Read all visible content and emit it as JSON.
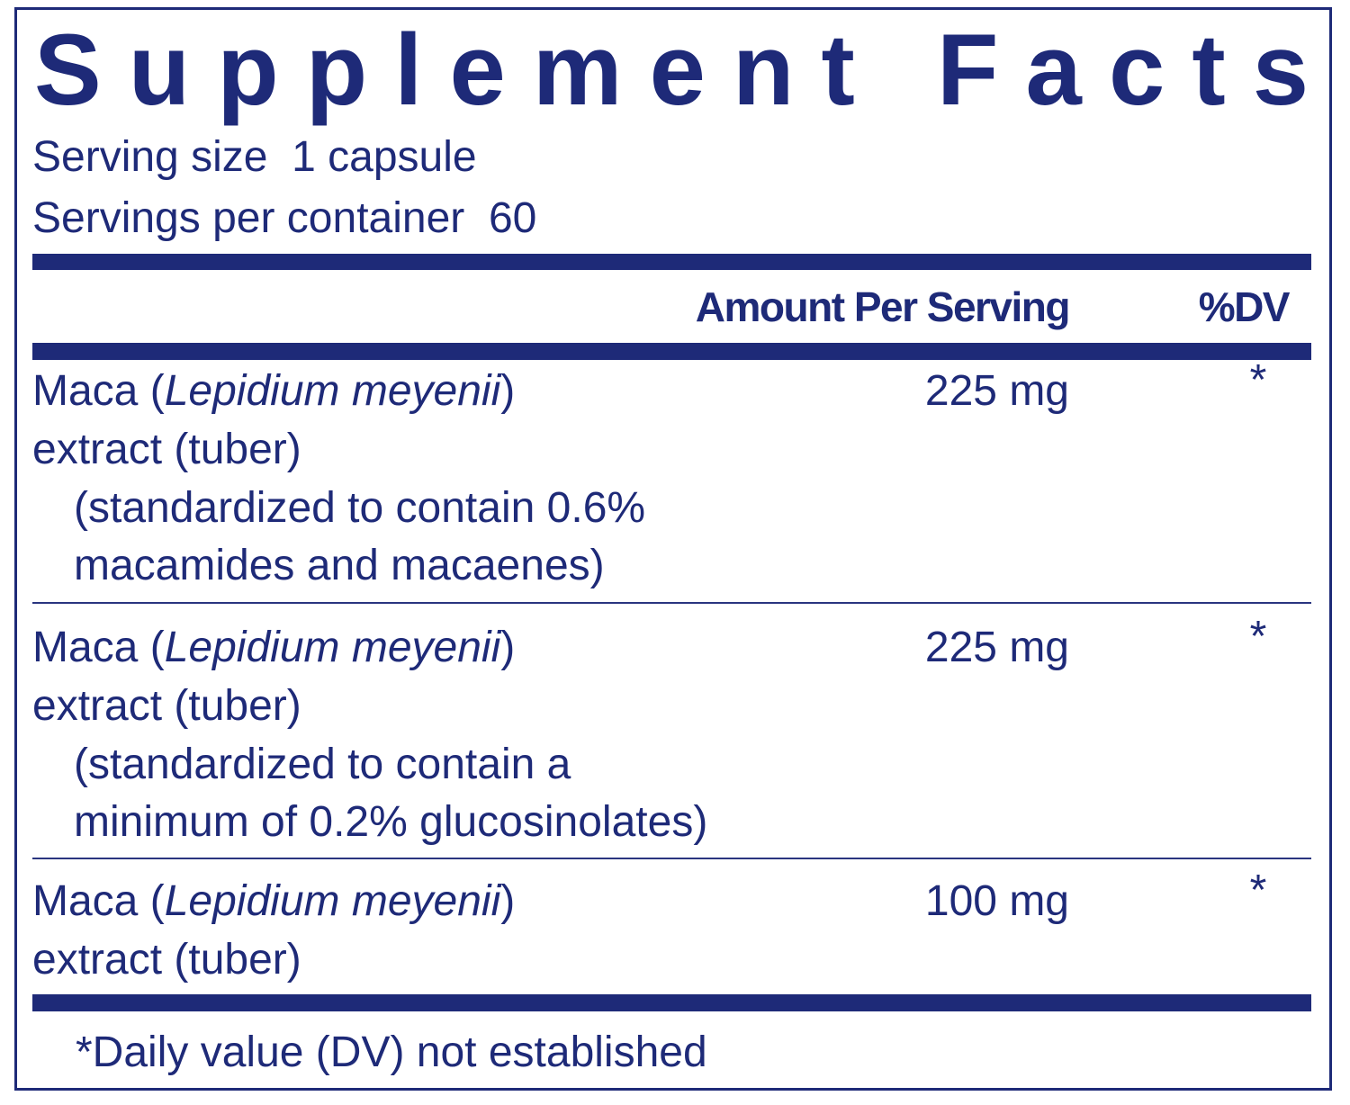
{
  "title": "Supplement Facts",
  "serving_size": {
    "label": "Serving size",
    "value": "1 capsule"
  },
  "servings_per_container": {
    "label": "Servings per container",
    "value": "60"
  },
  "header": {
    "amount": "Amount Per Serving",
    "dv": "%DV"
  },
  "rows": [
    {
      "name_prefix": "Maca (",
      "name_italic": "Lepidium meyenii",
      "name_suffix": ")",
      "name_line2": "extract (tuber)",
      "details": [
        "(standardized to contain 0.6%",
        "macamides and macaenes)"
      ],
      "amount": "225 mg",
      "dv": "*"
    },
    {
      "name_prefix": "Maca (",
      "name_italic": "Lepidium meyenii",
      "name_suffix": ")",
      "name_line2": "extract (tuber)",
      "details": [
        "(standardized to contain a",
        "minimum of 0.2% glucosinolates)"
      ],
      "amount": "225 mg",
      "dv": "*"
    },
    {
      "name_prefix": "Maca (",
      "name_italic": "Lepidium meyenii",
      "name_suffix": ")",
      "name_line2": "extract (tuber)",
      "details": [],
      "amount": "100 mg",
      "dv": "*"
    }
  ],
  "footnote": "*Daily value (DV) not established"
}
